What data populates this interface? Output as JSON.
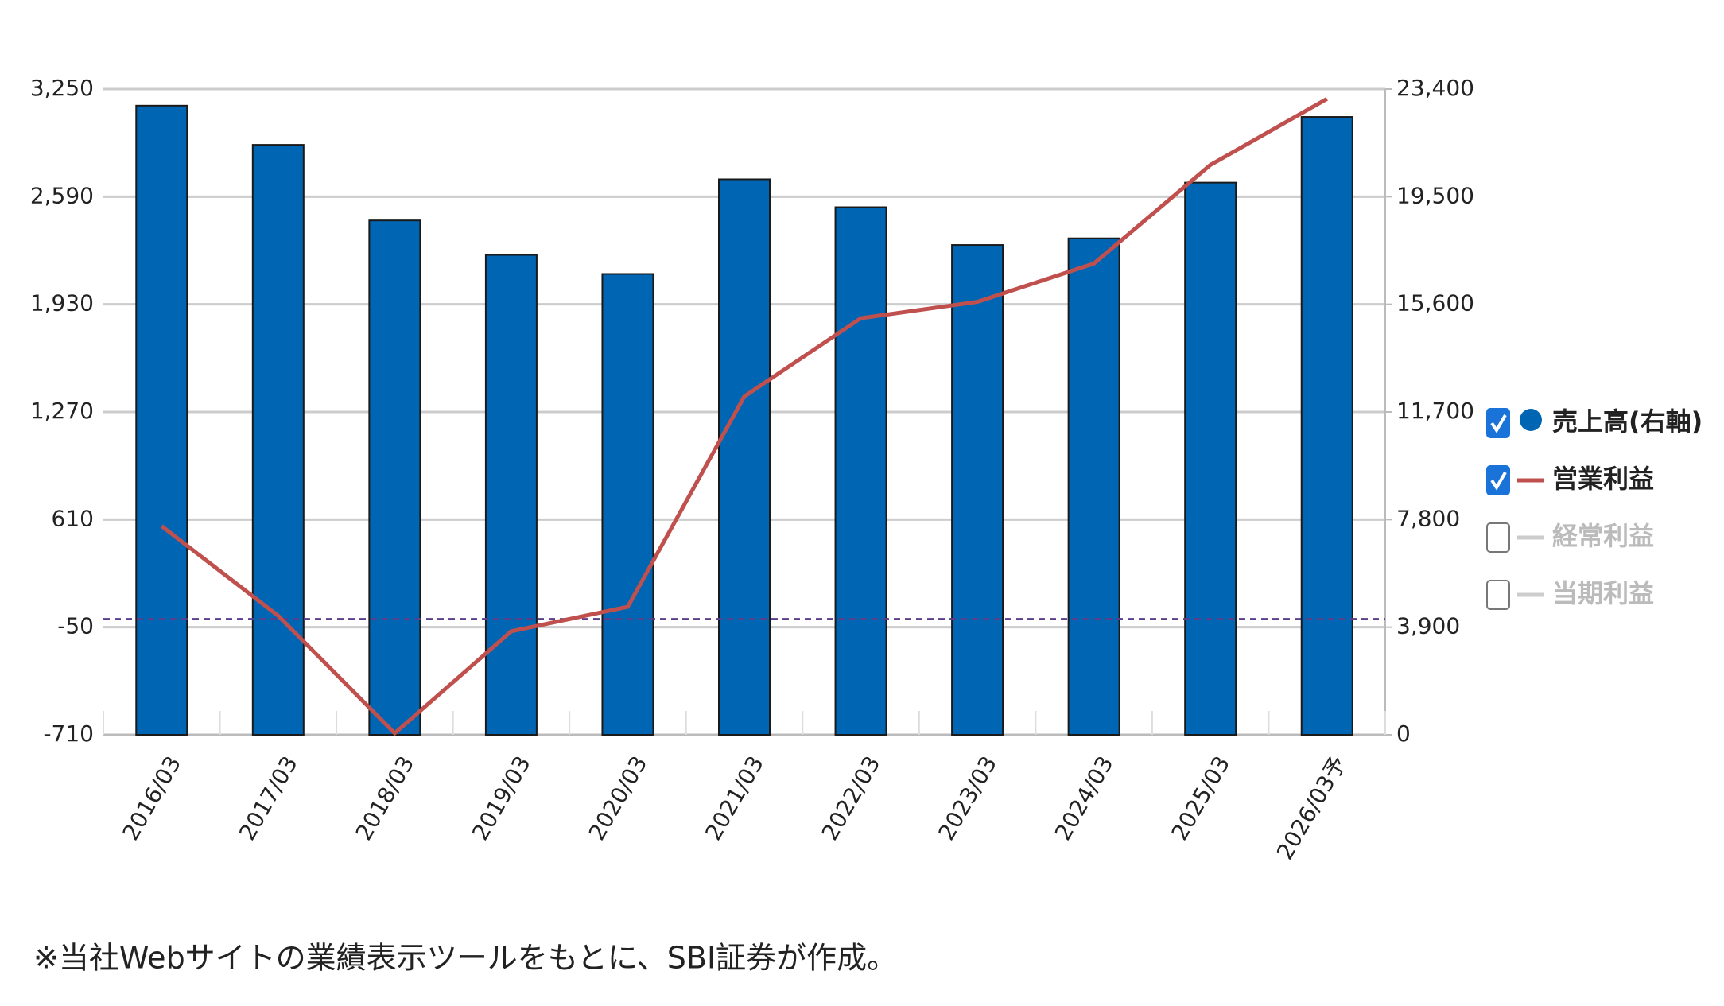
{
  "chart_data": {
    "type": "bar",
    "categories": [
      "2016/03",
      "2017/03",
      "2018/03",
      "2019/03",
      "2020/03",
      "2021/03",
      "2022/03",
      "2023/03",
      "2024/03",
      "2025/03",
      "2026/03予"
    ],
    "series": [
      {
        "name": "売上高(右軸)",
        "type": "bar",
        "axis": "y2",
        "color": "#0066b3",
        "checked": true,
        "values": [
          22800,
          21380,
          18640,
          17390,
          16700,
          20130,
          19120,
          17750,
          17990,
          20010,
          22390
        ]
      },
      {
        "name": "営業利益",
        "type": "line",
        "axis": "y",
        "color": "#c0504d",
        "checked": true,
        "values": [
          570,
          20,
          -700,
          -75,
          75,
          1365,
          1845,
          1945,
          2180,
          2785,
          3190
        ]
      },
      {
        "name": "経常利益",
        "type": "line",
        "axis": "y",
        "color": "#bbbbbb",
        "checked": false
      },
      {
        "name": "当期利益",
        "type": "line",
        "axis": "y",
        "color": "#bbbbbb",
        "checked": false
      }
    ],
    "ylim": [
      -710,
      3250
    ],
    "yticks": [
      -710,
      -50,
      610,
      {
        "value": 1270,
        "label": "1,270"
      },
      {
        "value": 1930,
        "label": "1,930"
      },
      {
        "value": 2590,
        "label": "2,590"
      },
      {
        "value": 3250,
        "label": "3,250"
      }
    ],
    "y2lim": [
      0,
      23400
    ],
    "y2ticks": [
      0,
      {
        "value": 3900,
        "label": "3,900"
      },
      {
        "value": 7800,
        "label": "7,800"
      },
      {
        "value": 11700,
        "label": "11,700"
      },
      {
        "value": 15600,
        "label": "15,600"
      },
      {
        "value": 19500,
        "label": "19,500"
      },
      {
        "value": 23400,
        "label": "23,400"
      }
    ],
    "hline": 0,
    "grid": true,
    "footnote": "※当社Webサイトの業績表示ツールをもとに、SBI証券が作成。"
  }
}
